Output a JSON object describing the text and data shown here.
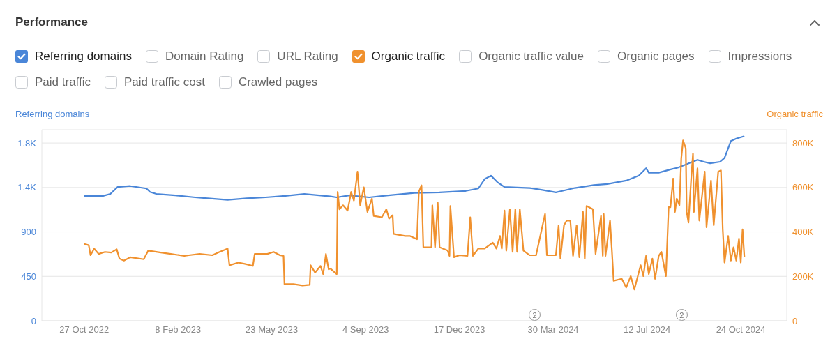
{
  "chart_data": {
    "type": "line",
    "title": "Performance",
    "ylabel": "Referring domains",
    "y2label": "Organic traffic",
    "legend": "top",
    "grid": "y",
    "marker": "none",
    "line_style": "solid",
    "annotations": [
      "Domain Rating",
      "URL Rating",
      "Organic traffic value",
      "Organic pages",
      "Impressions",
      "Paid traffic",
      "Paid traffic cost",
      "Crawled pages",
      {
        "text": "2",
        "x": "2024-03-09"
      },
      {
        "text": "2",
        "x": "2024-08-19"
      }
    ],
    "xlim": [
      "2022-09-10",
      "2024-12-14"
    ],
    "xticks": [
      {
        "value": "2022-10-27",
        "label": "27 Oct 2022"
      },
      {
        "value": "2023-02-08",
        "label": "8 Feb 2023"
      },
      {
        "value": "2023-05-23",
        "label": "23 May 2023"
      },
      {
        "value": "2023-09-04",
        "label": "4 Sep 2023"
      },
      {
        "value": "2023-12-17",
        "label": "17 Dec 2023"
      },
      {
        "value": "2024-03-30",
        "label": "30 Mar 2024"
      },
      {
        "value": "2024-07-12",
        "label": "12 Jul 2024"
      },
      {
        "value": "2024-10-24",
        "label": "24 Oct 2024"
      }
    ],
    "ylim": [
      0,
      1935
    ],
    "yticks": [
      0,
      450,
      900,
      {
        "value": 1350,
        "label": "1.4K"
      },
      {
        "value": 1800,
        "label": "1.8K"
      }
    ],
    "y2lim": [
      0,
      860000
    ],
    "y2ticks": [
      0,
      {
        "value": 200000,
        "label": "200K"
      },
      {
        "value": 400000,
        "label": "400K"
      },
      {
        "value": 600000,
        "label": "600K"
      },
      {
        "value": 800000,
        "label": "800K"
      }
    ],
    "series": [
      {
        "name": "Referring domains",
        "color": "#4a86d8",
        "x": [
          "2022-10-27",
          "2022-11-17",
          "2022-11-25",
          "2022-12-03",
          "2022-12-17",
          "2023-01-04",
          "2023-01-08",
          "2023-01-15",
          "2023-02-05",
          "2023-02-27",
          "2023-03-13",
          "2023-04-04",
          "2023-04-25",
          "2023-05-16",
          "2023-06-07",
          "2023-06-28",
          "2023-07-27",
          "2023-08-03",
          "2023-08-17",
          "2023-09-08",
          "2023-09-29",
          "2023-10-28",
          "2023-11-25",
          "2023-12-24",
          "2024-01-07",
          "2024-01-14",
          "2024-01-21",
          "2024-01-28",
          "2024-02-05",
          "2024-03-04",
          "2024-03-18",
          "2024-04-02",
          "2024-04-09",
          "2024-04-23",
          "2024-05-14",
          "2024-05-29",
          "2024-06-19",
          "2024-07-03",
          "2024-07-11",
          "2024-07-14",
          "2024-07-25",
          "2024-08-08",
          "2024-08-15",
          "2024-08-22",
          "2024-08-30",
          "2024-09-06",
          "2024-09-13",
          "2024-09-20",
          "2024-10-01",
          "2024-10-06",
          "2024-10-13",
          "2024-10-19",
          "2024-10-28"
        ],
        "values": [
          1265,
          1265,
          1285,
          1355,
          1365,
          1340,
          1305,
          1285,
          1270,
          1250,
          1240,
          1225,
          1240,
          1250,
          1265,
          1285,
          1260,
          1250,
          1270,
          1250,
          1270,
          1295,
          1300,
          1315,
          1340,
          1435,
          1470,
          1405,
          1355,
          1345,
          1325,
          1300,
          1315,
          1345,
          1375,
          1385,
          1420,
          1470,
          1545,
          1500,
          1500,
          1535,
          1550,
          1575,
          1605,
          1630,
          1610,
          1595,
          1610,
          1650,
          1820,
          1845,
          1870
        ]
      },
      {
        "name": "Organic traffic",
        "color": "#f0912e",
        "axis": "y2",
        "x": [
          "2022-10-27",
          "2022-11-01",
          "2022-11-03",
          "2022-11-07",
          "2022-11-12",
          "2022-11-19",
          "2022-11-26",
          "2022-12-02",
          "2022-12-05",
          "2022-12-10",
          "2022-12-17",
          "2023-01-01",
          "2023-01-06",
          "2023-01-20",
          "2023-01-31",
          "2023-02-15",
          "2023-02-20",
          "2023-03-04",
          "2023-03-18",
          "2023-03-26",
          "2023-04-04",
          "2023-04-06",
          "2023-04-16",
          "2023-04-23",
          "2023-05-02",
          "2023-05-04",
          "2023-05-18",
          "2023-05-25",
          "2023-06-01",
          "2023-06-05",
          "2023-06-06",
          "2023-06-16",
          "2023-06-26",
          "2023-07-04",
          "2023-07-05",
          "2023-07-10",
          "2023-07-16",
          "2023-07-19",
          "2023-07-22",
          "2023-07-25",
          "2023-07-27",
          "2023-08-03",
          "2023-08-04",
          "2023-08-06",
          "2023-08-10",
          "2023-08-15",
          "2023-08-19",
          "2023-08-22",
          "2023-08-26",
          "2023-08-29",
          "2023-09-02",
          "2023-09-06",
          "2023-09-11",
          "2023-09-13",
          "2023-09-22",
          "2023-09-27",
          "2023-09-30",
          "2023-10-04",
          "2023-10-05",
          "2023-10-18",
          "2023-10-23",
          "2023-10-31",
          "2023-11-02",
          "2023-11-05",
          "2023-11-07",
          "2023-11-16",
          "2023-11-17",
          "2023-11-20",
          "2023-11-23",
          "2023-11-25",
          "2023-12-04",
          "2023-12-06",
          "2023-12-07",
          "2023-12-11",
          "2023-12-17",
          "2023-12-26",
          "2023-12-29",
          "2024-01-01",
          "2024-01-07",
          "2024-01-14",
          "2024-01-23",
          "2024-01-27",
          "2024-01-31",
          "2024-02-02",
          "2024-02-05",
          "2024-02-07",
          "2024-02-11",
          "2024-02-14",
          "2024-02-17",
          "2024-02-19",
          "2024-02-22",
          "2024-02-26",
          "2024-03-04",
          "2024-03-11",
          "2024-03-21",
          "2024-03-23",
          "2024-04-02",
          "2024-04-05",
          "2024-04-07",
          "2024-04-11",
          "2024-04-14",
          "2024-04-18",
          "2024-04-21",
          "2024-04-25",
          "2024-04-28",
          "2024-05-02",
          "2024-05-04",
          "2024-05-06",
          "2024-05-13",
          "2024-05-16",
          "2024-05-22",
          "2024-05-24",
          "2024-05-25",
          "2024-05-27",
          "2024-06-01",
          "2024-06-03",
          "2024-06-05",
          "2024-06-14",
          "2024-06-19",
          "2024-06-24",
          "2024-06-28",
          "2024-07-03",
          "2024-07-05",
          "2024-07-08",
          "2024-07-11",
          "2024-07-14",
          "2024-07-18",
          "2024-07-21",
          "2024-07-25",
          "2024-07-28",
          "2024-08-02",
          "2024-08-05",
          "2024-08-07",
          "2024-08-10",
          "2024-08-12",
          "2024-08-14",
          "2024-08-17",
          "2024-08-19",
          "2024-08-21",
          "2024-08-24",
          "2024-08-25",
          "2024-08-27",
          "2024-08-30",
          "2024-09-01",
          "2024-09-02",
          "2024-09-06",
          "2024-09-08",
          "2024-09-14",
          "2024-09-16",
          "2024-09-21",
          "2024-09-24",
          "2024-09-29",
          "2024-10-02",
          "2024-10-04",
          "2024-10-06",
          "2024-10-10",
          "2024-10-13",
          "2024-10-16",
          "2024-10-19",
          "2024-10-22",
          "2024-10-24",
          "2024-10-26",
          "2024-10-28"
        ],
        "values": [
          346000,
          340000,
          295000,
          325000,
          301000,
          310000,
          307000,
          322000,
          280000,
          271000,
          286000,
          277000,
          316000,
          307000,
          301000,
          292000,
          295000,
          301000,
          295000,
          310000,
          325000,
          250000,
          262000,
          256000,
          247000,
          301000,
          301000,
          310000,
          295000,
          292000,
          165000,
          165000,
          159000,
          162000,
          250000,
          217000,
          247000,
          210000,
          301000,
          232000,
          235000,
          210000,
          580000,
          502000,
          520000,
          496000,
          580000,
          541000,
          671000,
          520000,
          601000,
          490000,
          550000,
          472000,
          466000,
          502000,
          460000,
          475000,
          391000,
          382000,
          382000,
          367000,
          580000,
          610000,
          331000,
          331000,
          520000,
          331000,
          532000,
          331000,
          316000,
          292000,
          517000,
          286000,
          295000,
          292000,
          466000,
          292000,
          325000,
          325000,
          352000,
          325000,
          382000,
          325000,
          496000,
          316000,
          502000,
          310000,
          502000,
          310000,
          502000,
          316000,
          295000,
          295000,
          481000,
          295000,
          295000,
          430000,
          280000,
          430000,
          451000,
          451000,
          292000,
          430000,
          286000,
          490000,
          280000,
          517000,
          502000,
          301000,
          472000,
          292000,
          481000,
          292000,
          451000,
          322000,
          180000,
          189000,
          150000,
          201000,
          141000,
          220000,
          250000,
          201000,
          292000,
          210000,
          280000,
          189000,
          292000,
          310000,
          201000,
          511000,
          511000,
          640000,
          490000,
          550000,
          520000,
          731000,
          812000,
          776000,
          490000,
          442000,
          640000,
          752000,
          490000,
          686000,
          451000,
          671000,
          421000,
          631000,
          430000,
          671000,
          677000,
          412000,
          262000,
          382000,
          271000,
          331000,
          271000,
          370000,
          262000,
          412000,
          286000
        ]
      }
    ]
  }
}
